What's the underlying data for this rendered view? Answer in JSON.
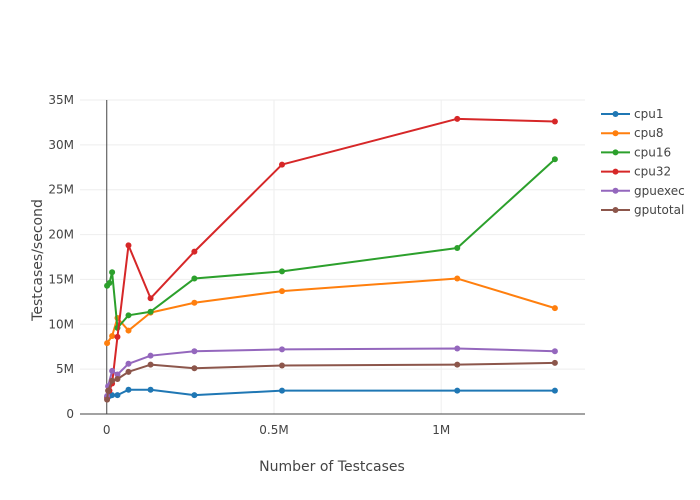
{
  "chart_data": {
    "type": "line",
    "title": "",
    "xlabel": "Number of Testcases",
    "ylabel": "Testcases/second",
    "xlim": [
      -80000,
      1430000
    ],
    "ylim": [
      0,
      35000000
    ],
    "x_ticks": [
      {
        "value": 0,
        "label": "0"
      },
      {
        "value": 500000,
        "label": "0.5M"
      },
      {
        "value": 1000000,
        "label": "1M"
      }
    ],
    "y_ticks": [
      {
        "value": 0,
        "label": "0"
      },
      {
        "value": 5000000,
        "label": "5M"
      },
      {
        "value": 10000000,
        "label": "10M"
      },
      {
        "value": 15000000,
        "label": "15M"
      },
      {
        "value": 20000000,
        "label": "20M"
      },
      {
        "value": 25000000,
        "label": "25M"
      },
      {
        "value": 30000000,
        "label": "30M"
      },
      {
        "value": 35000000,
        "label": "35M"
      }
    ],
    "grid": true,
    "legend_position": "top-right",
    "series": [
      {
        "name": "cpu1",
        "color": "#1f77b4",
        "points": [
          [
            1000,
            1900000
          ],
          [
            4000,
            2000000
          ],
          [
            8000,
            2000000
          ],
          [
            16000,
            2100000
          ],
          [
            32000,
            2100000
          ],
          [
            65000,
            2700000
          ],
          [
            131000,
            2700000
          ],
          [
            262000,
            2100000
          ],
          [
            524000,
            2600000
          ],
          [
            1048000,
            2600000
          ],
          [
            1340000,
            2600000
          ]
        ]
      },
      {
        "name": "cpu8",
        "color": "#ff7f0e",
        "points": [
          [
            1000,
            7900000
          ],
          [
            16000,
            8700000
          ],
          [
            32000,
            10700000
          ],
          [
            65000,
            9300000
          ],
          [
            131000,
            11300000
          ],
          [
            262000,
            12400000
          ],
          [
            524000,
            13700000
          ],
          [
            1048000,
            15100000
          ],
          [
            1340000,
            11800000
          ]
        ]
      },
      {
        "name": "cpu16",
        "color": "#2ca02c",
        "points": [
          [
            1000,
            14300000
          ],
          [
            8000,
            14600000
          ],
          [
            16000,
            15800000
          ],
          [
            32000,
            9600000
          ],
          [
            65000,
            11000000
          ],
          [
            131000,
            11400000
          ],
          [
            262000,
            15100000
          ],
          [
            524000,
            15900000
          ],
          [
            1048000,
            18500000
          ],
          [
            1340000,
            28400000
          ]
        ]
      },
      {
        "name": "cpu32",
        "color": "#d62728",
        "points": [
          [
            1000,
            1800000
          ],
          [
            8000,
            2600000
          ],
          [
            16000,
            3400000
          ],
          [
            32000,
            8600000
          ],
          [
            65000,
            18800000
          ],
          [
            131000,
            12900000
          ],
          [
            262000,
            18100000
          ],
          [
            524000,
            27800000
          ],
          [
            1048000,
            32900000
          ],
          [
            1340000,
            32600000
          ]
        ]
      },
      {
        "name": "gpuexec",
        "color": "#9467bd",
        "points": [
          [
            1000,
            2000000
          ],
          [
            4000,
            3100000
          ],
          [
            16000,
            4800000
          ],
          [
            32000,
            4400000
          ],
          [
            65000,
            5600000
          ],
          [
            131000,
            6500000
          ],
          [
            262000,
            7000000
          ],
          [
            524000,
            7200000
          ],
          [
            1048000,
            7300000
          ],
          [
            1340000,
            7000000
          ]
        ]
      },
      {
        "name": "gputotal",
        "color": "#8c564b",
        "points": [
          [
            1000,
            1600000
          ],
          [
            4000,
            2600000
          ],
          [
            16000,
            3700000
          ],
          [
            32000,
            3900000
          ],
          [
            65000,
            4700000
          ],
          [
            131000,
            5500000
          ],
          [
            262000,
            5100000
          ],
          [
            524000,
            5400000
          ],
          [
            1048000,
            5500000
          ],
          [
            1340000,
            5700000
          ]
        ]
      }
    ]
  }
}
